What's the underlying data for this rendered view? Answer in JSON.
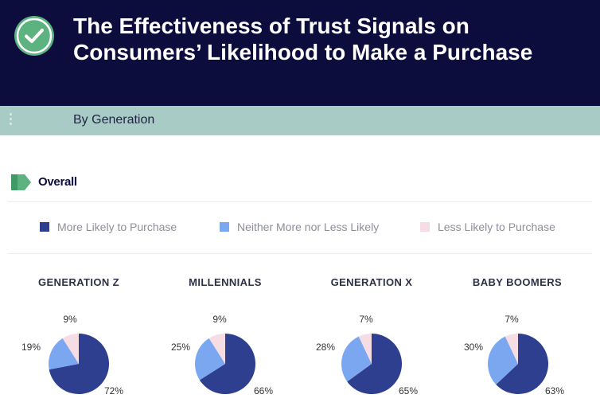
{
  "header": {
    "title": "The Effectiveness of Trust Signals on Consumers’ Likelihood to Make a Purchase",
    "badge_icon": "check-circle-icon",
    "background": "#0c0c3d"
  },
  "subheader": {
    "label": "By Generation",
    "background": "#a8cbc5"
  },
  "section": {
    "title": "Overall",
    "flag_color": "#5cb37f"
  },
  "legend": [
    {
      "label": "More Likely to Purchase",
      "color": "#2e3f8f"
    },
    {
      "label": "Neither More nor Less Likely",
      "color": "#7aa7f0"
    },
    {
      "label": "Less Likely to Purchase",
      "color": "#f6dde4"
    }
  ],
  "chart_data": {
    "type": "pie",
    "categories": [
      "More Likely to Purchase",
      "Neither More nor Less Likely",
      "Less Likely to Purchase"
    ],
    "colors": [
      "#2e3f8f",
      "#7aa7f0",
      "#f6dde4"
    ],
    "charts": [
      {
        "title": "GENERATION Z",
        "values": [
          72,
          19,
          9
        ]
      },
      {
        "title": "MILLENNIALS",
        "values": [
          66,
          25,
          9
        ]
      },
      {
        "title": "GENERATION X",
        "values": [
          65,
          28,
          7
        ]
      },
      {
        "title": "BABY BOOMERS",
        "values": [
          63,
          30,
          7
        ]
      }
    ]
  }
}
